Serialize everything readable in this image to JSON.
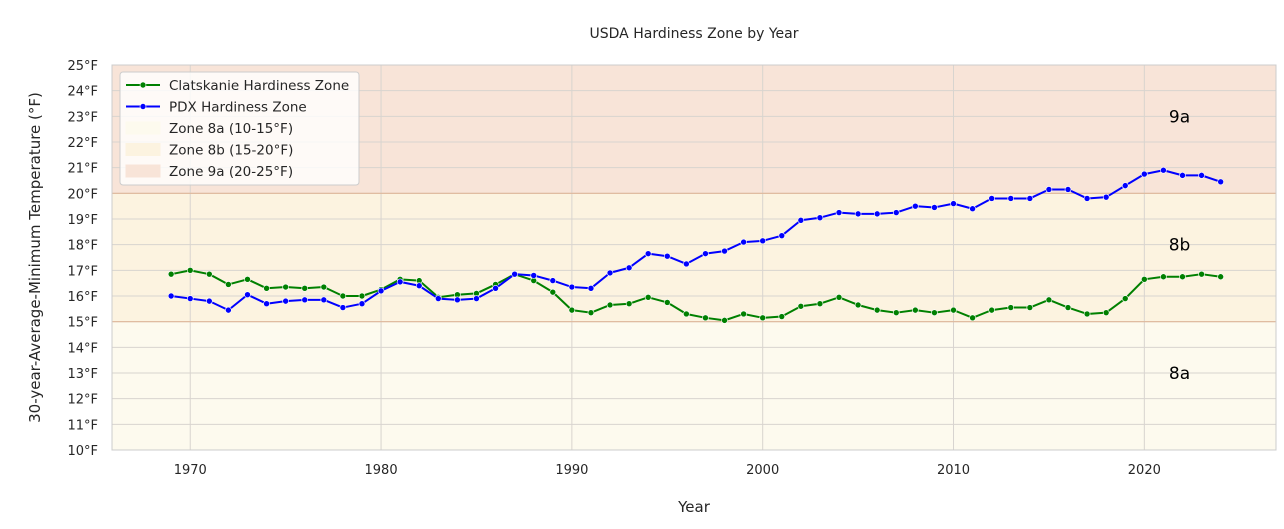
{
  "chart_data": {
    "type": "line",
    "title": "USDA Hardiness Zone by Year",
    "xlabel": "Year",
    "ylabel": "30-year-Average-Minimum Temperature (°F)",
    "xlim": [
      1965.9,
      2026.9
    ],
    "ylim": [
      10,
      25
    ],
    "x_ticks": [
      1970,
      1980,
      1990,
      2000,
      2010,
      2020
    ],
    "y_ticks": [
      {
        "value": 10,
        "label": "10°F"
      },
      {
        "value": 11,
        "label": "11°F"
      },
      {
        "value": 12,
        "label": "12°F"
      },
      {
        "value": 13,
        "label": "13°F"
      },
      {
        "value": 14,
        "label": "14°F"
      },
      {
        "value": 15,
        "label": "15°F"
      },
      {
        "value": 16,
        "label": "16°F"
      },
      {
        "value": 17,
        "label": "17°F"
      },
      {
        "value": 18,
        "label": "18°F"
      },
      {
        "value": 19,
        "label": "19°F"
      },
      {
        "value": 20,
        "label": "20°F"
      },
      {
        "value": 21,
        "label": "21°F"
      },
      {
        "value": 22,
        "label": "22°F"
      },
      {
        "value": 23,
        "label": "23°F"
      },
      {
        "value": 24,
        "label": "24°F"
      },
      {
        "value": 25,
        "label": "25°F"
      }
    ],
    "grid": true,
    "legend_position": "top-left",
    "x": [
      1969,
      1970,
      1971,
      1972,
      1973,
      1974,
      1975,
      1976,
      1977,
      1978,
      1979,
      1980,
      1981,
      1982,
      1983,
      1984,
      1985,
      1986,
      1987,
      1988,
      1989,
      1990,
      1991,
      1992,
      1993,
      1994,
      1995,
      1996,
      1997,
      1998,
      1999,
      2000,
      2001,
      2002,
      2003,
      2004,
      2005,
      2006,
      2007,
      2008,
      2009,
      2010,
      2011,
      2012,
      2013,
      2014,
      2015,
      2016,
      2017,
      2018,
      2019,
      2020,
      2021,
      2022,
      2023,
      2024
    ],
    "series": [
      {
        "name": "Clatskanie Hardiness Zone",
        "color": "#008000",
        "values": [
          16.85,
          17.0,
          16.85,
          16.45,
          16.65,
          16.3,
          16.35,
          16.3,
          16.35,
          16.0,
          16.0,
          16.25,
          16.65,
          16.6,
          15.95,
          16.05,
          16.1,
          16.45,
          16.85,
          16.6,
          16.15,
          15.45,
          15.35,
          15.65,
          15.7,
          15.95,
          15.75,
          15.3,
          15.15,
          15.05,
          15.3,
          15.15,
          15.2,
          15.6,
          15.7,
          15.95,
          15.65,
          15.45,
          15.35,
          15.45,
          15.35,
          15.45,
          15.15,
          15.45,
          15.55,
          15.55,
          15.85,
          15.55,
          15.3,
          15.35,
          15.9,
          16.65,
          16.75,
          16.75,
          16.85,
          16.75
        ]
      },
      {
        "name": "PDX Hardiness Zone",
        "color": "#0000ff",
        "values": [
          16.0,
          15.9,
          15.8,
          15.45,
          16.05,
          15.7,
          15.8,
          15.85,
          15.85,
          15.55,
          15.7,
          16.2,
          16.55,
          16.4,
          15.9,
          15.85,
          15.9,
          16.3,
          16.85,
          16.8,
          16.6,
          16.35,
          16.3,
          16.9,
          17.1,
          17.65,
          17.55,
          17.25,
          17.65,
          17.75,
          18.1,
          18.15,
          18.35,
          18.95,
          19.05,
          19.25,
          19.2,
          19.2,
          19.25,
          19.5,
          19.45,
          19.6,
          19.4,
          19.8,
          19.8,
          19.8,
          20.15,
          20.15,
          19.8,
          19.85,
          20.3,
          20.75,
          20.9,
          20.7,
          20.7,
          20.45
        ]
      }
    ],
    "zones": [
      {
        "label": "Zone 8a (10-15°F)",
        "short": "8a",
        "min": 10,
        "max": 15,
        "color": "#fdfaee",
        "label_y": 13
      },
      {
        "label": "Zone 8b (15-20°F)",
        "short": "8b",
        "min": 15,
        "max": 20,
        "color": "#fcf3e0",
        "label_y": 18
      },
      {
        "label": "Zone 9a (20-25°F)",
        "short": "9a",
        "min": 20,
        "max": 25,
        "color": "#f8e4d8",
        "label_y": 23
      }
    ],
    "zone_label_x": 2022,
    "zone_boundary_color": "#dfb89a"
  }
}
